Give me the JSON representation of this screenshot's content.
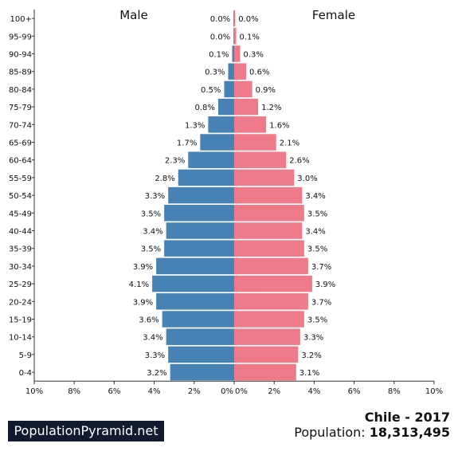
{
  "page": {
    "country_year": "Chile - 2017",
    "population_label": "Population:",
    "population_value": "18,313,495",
    "brand": "PopulationPyramid.net"
  },
  "colors": {
    "male": "#4682b4",
    "female": "#ef7a8a",
    "axis": "#333333"
  },
  "chart_data": {
    "type": "bar",
    "orientation": "horizontal-pyramid",
    "side_titles": [
      "Male",
      "Female"
    ],
    "categories": [
      "100+",
      "95-99",
      "90-94",
      "85-89",
      "80-84",
      "75-79",
      "70-74",
      "65-69",
      "60-64",
      "55-59",
      "50-54",
      "45-49",
      "40-44",
      "35-39",
      "30-34",
      "25-29",
      "20-24",
      "15-19",
      "10-14",
      "5-9",
      "0-4"
    ],
    "series": [
      {
        "name": "Male",
        "values": [
          0.0,
          0.0,
          0.1,
          0.3,
          0.5,
          0.8,
          1.3,
          1.7,
          2.3,
          2.8,
          3.3,
          3.5,
          3.4,
          3.5,
          3.9,
          4.1,
          3.9,
          3.6,
          3.4,
          3.3,
          3.2
        ],
        "labels": [
          "0.0%",
          "0.0%",
          "0.1%",
          "0.3%",
          "0.5%",
          "0.8%",
          "1.3%",
          "1.7%",
          "2.3%",
          "2.8%",
          "3.3%",
          "3.5%",
          "3.4%",
          "3.5%",
          "3.9%",
          "4.1%",
          "3.9%",
          "3.6%",
          "3.4%",
          "3.3%",
          "3.2%"
        ]
      },
      {
        "name": "Female",
        "values": [
          0.0,
          0.1,
          0.3,
          0.6,
          0.9,
          1.2,
          1.6,
          2.1,
          2.6,
          3.0,
          3.4,
          3.5,
          3.4,
          3.5,
          3.7,
          3.9,
          3.7,
          3.5,
          3.3,
          3.2,
          3.1
        ],
        "labels": [
          "0.0%",
          "0.1%",
          "0.3%",
          "0.6%",
          "0.9%",
          "1.2%",
          "1.6%",
          "2.1%",
          "2.6%",
          "3.0%",
          "3.4%",
          "3.5%",
          "3.4%",
          "3.5%",
          "3.7%",
          "3.9%",
          "3.7%",
          "3.5%",
          "3.3%",
          "3.2%",
          "3.1%"
        ]
      }
    ],
    "x_range": [
      0,
      10
    ],
    "male_ticks": [
      "10%",
      "8%",
      "6%",
      "4%",
      "2%",
      "0%"
    ],
    "female_ticks": [
      "0%",
      "2%",
      "4%",
      "6%",
      "8%",
      "10%"
    ],
    "grid": false
  }
}
